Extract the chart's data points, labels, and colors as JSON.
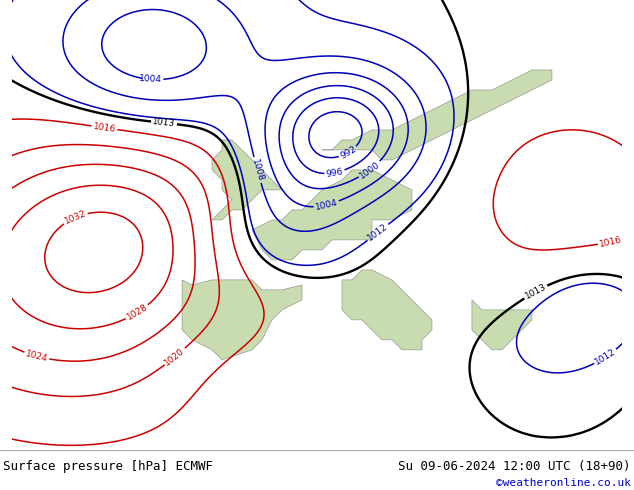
{
  "title_left": "Surface pressure [hPa] ECMWF",
  "title_right": "Su 09-06-2024 12:00 UTC (18+90)",
  "copyright": "©weatheronline.co.uk",
  "bg_color": "#e8e8e8",
  "land_color": "#c8dcb0",
  "sea_color": "#d8d8d8",
  "border_color": "#888888",
  "contour_blue_color": "#0000bb",
  "contour_red_color": "#cc0000",
  "contour_black_color": "#000000",
  "font_size_title": 9,
  "font_size_copyright": 8,
  "figsize": [
    6.34,
    4.9
  ],
  "dpi": 100,
  "map_extent_lon": [
    -26,
    35
  ],
  "map_extent_lat": [
    27,
    72
  ]
}
